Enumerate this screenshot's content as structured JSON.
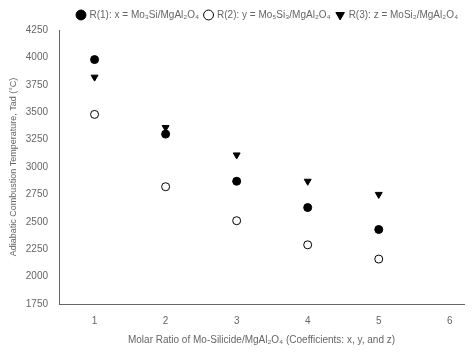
{
  "chart_data": {
    "type": "scatter",
    "x": [
      1,
      2,
      3,
      4,
      5
    ],
    "series": [
      {
        "name": "R(1): x = Mo₃Si/MgAl₂O₄",
        "color": "black",
        "marker": "circle",
        "values": [
          3980,
          3300,
          2870,
          2630,
          2430
        ]
      },
      {
        "name": "R(2): y = Mo₅Si₃/MgAl₂O₄",
        "color": "black",
        "marker": "open_circle",
        "values": [
          3480,
          2820,
          2510,
          2290,
          2160
        ]
      },
      {
        "name": "R(3): z = MoSi₂/MgAl₂O₄",
        "color": "black",
        "marker": "triangle_down",
        "values": [
          3820,
          3360,
          3110,
          2870,
          2750
        ]
      }
    ],
    "xlabel": "Molar Ratio of Mo-Silicide/MgAl₂O₄ (Coefficients: x, y, and z)",
    "ylabel": "Adiabatic Combustion Temperature, Tad (°C)",
    "xlim": [
      0.5,
      6.2
    ],
    "ylim": [
      1750,
      4250
    ],
    "xticks": [
      1,
      2,
      3,
      4,
      5,
      6
    ],
    "yticks": [
      1750,
      2000,
      2250,
      2500,
      2750,
      3000,
      3250,
      3500,
      3750,
      4000,
      4250
    ],
    "grid": false,
    "legend": "upper right"
  }
}
